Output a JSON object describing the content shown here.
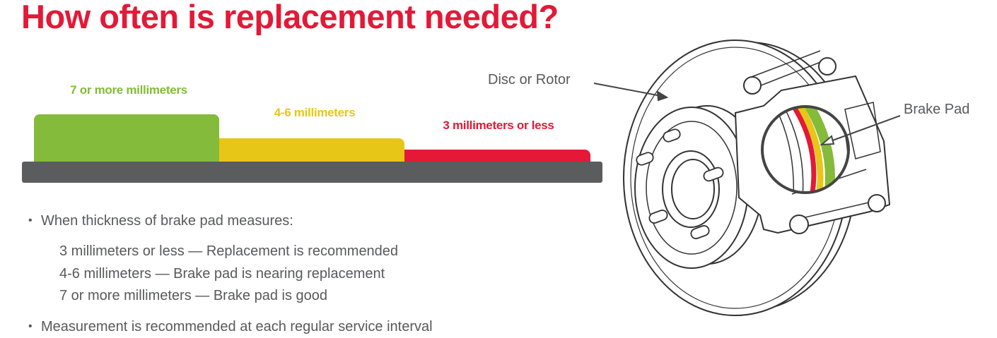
{
  "title": "How often is replacement needed?",
  "levels": [
    {
      "label": "7 or more millimeters",
      "color": "#84bb3b"
    },
    {
      "label": "4-6 millimeters",
      "color": "#e8c618"
    },
    {
      "label": "3 millimeters or less",
      "color": "#e31937"
    }
  ],
  "base_color": "#5b5c5e",
  "bullets": {
    "intro": "When thickness of brake pad measures:",
    "items": [
      "3 millimeters or less — Replacement is recommended",
      "4-6 millimeters — Brake pad is nearing replacement",
      "7 or more millimeters — Brake pad is good"
    ],
    "final": "Measurement is recommended at each regular service interval"
  },
  "diagram": {
    "disc_label": "Disc or Rotor",
    "pad_label": "Brake Pad"
  }
}
